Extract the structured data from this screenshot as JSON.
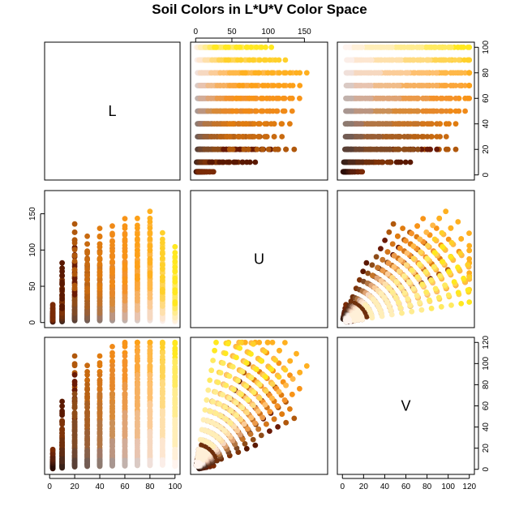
{
  "chart_data": {
    "type": "scatter",
    "subtype": "scatterplot-matrix",
    "title": "Soil Colors in L*U*V Color Space",
    "variables": [
      "L",
      "U",
      "V"
    ],
    "ranges": {
      "L": [
        0,
        100
      ],
      "U": [
        0,
        175
      ],
      "V": [
        0,
        120
      ]
    },
    "ticks": {
      "L": [
        0,
        20,
        40,
        60,
        80,
        100
      ],
      "U": [
        0,
        50,
        100,
        150
      ],
      "V": [
        0,
        20,
        40,
        60,
        80,
        100,
        120
      ]
    },
    "axes": {
      "top": {
        "variable": "U",
        "labels": [
          "0",
          "50",
          "100",
          "150"
        ]
      },
      "left": {
        "variable": "U",
        "labels": [
          "0",
          "50",
          "100",
          "150"
        ]
      },
      "right_top": {
        "variable": "L",
        "labels": [
          "0",
          "20",
          "40",
          "60",
          "80",
          "100"
        ]
      },
      "right_bottom": {
        "variable": "V",
        "labels": [
          "0",
          "20",
          "40",
          "60",
          "80",
          "100",
          "120"
        ]
      },
      "bottom": {
        "variable": "L",
        "labels": [
          "0",
          "20",
          "40",
          "60",
          "80",
          "100"
        ]
      }
    },
    "series": [
      {
        "L": 2.5,
        "hue_angles_deg": [
          10,
          80
        ],
        "chroma": [
          4,
          6,
          8,
          10,
          12,
          16,
          20
        ],
        "colors": [
          "#2a0d08",
          "#3d140a",
          "#4a1a0d",
          "#5a1f0d",
          "#6b2309",
          "#7a2a05"
        ]
      },
      {
        "L": 10,
        "hue_angles_deg": [
          20,
          75
        ],
        "chroma": [
          4,
          8,
          12,
          16,
          20,
          25,
          30,
          40,
          50,
          60,
          70
        ],
        "colors": [
          "#3a221a",
          "#4e2a1c",
          "#5f2c14",
          "#6e2f0c",
          "#7e3308",
          "#5a1800"
        ]
      },
      {
        "L": 20,
        "hue_angles_deg": [
          25,
          70
        ],
        "chroma": [
          6,
          10,
          15,
          20,
          30,
          40,
          50,
          60,
          70,
          80,
          90,
          100,
          110,
          120
        ],
        "colors": [
          "#5a4036",
          "#6e4631",
          "#7f4a26",
          "#8e4c18",
          "#6a1a06",
          "#b0580c"
        ]
      },
      {
        "L": 30,
        "hue_angles_deg": [
          30,
          70
        ],
        "chroma": [
          6,
          10,
          15,
          20,
          30,
          40,
          50,
          60,
          70,
          80,
          90,
          100,
          110
        ],
        "colors": [
          "#735d54",
          "#86604a",
          "#995f36",
          "#a85f22",
          "#b86214",
          "#c86a10"
        ]
      },
      {
        "L": 40,
        "hue_angles_deg": [
          30,
          70
        ],
        "chroma": [
          6,
          10,
          15,
          20,
          30,
          40,
          50,
          60,
          70,
          80,
          90,
          100,
          110,
          120
        ],
        "colors": [
          "#8e7a70",
          "#a07866",
          "#b27644",
          "#c4742a",
          "#d4761a",
          "#e07c10"
        ]
      },
      {
        "L": 50,
        "hue_angles_deg": [
          35,
          70
        ],
        "chroma": [
          6,
          10,
          15,
          20,
          30,
          40,
          50,
          60,
          70,
          80,
          90,
          100,
          110,
          120,
          130
        ],
        "colors": [
          "#a89690",
          "#bb9580",
          "#ca9058",
          "#d88a38",
          "#e6882a",
          "#f08a18"
        ]
      },
      {
        "L": 60,
        "hue_angles_deg": [
          35,
          70
        ],
        "chroma": [
          6,
          10,
          15,
          20,
          30,
          40,
          50,
          60,
          70,
          80,
          90,
          100,
          110,
          120,
          130,
          140
        ],
        "colors": [
          "#c2b2ac",
          "#d2ac98",
          "#dfa476",
          "#eb9a4a",
          "#f4922a",
          "#f89418"
        ]
      },
      {
        "L": 70,
        "hue_angles_deg": [
          40,
          70
        ],
        "chroma": [
          6,
          10,
          15,
          20,
          30,
          40,
          50,
          60,
          70,
          80,
          90,
          100,
          110,
          120,
          130,
          140,
          150
        ],
        "colors": [
          "#dacac4",
          "#e8c4b0",
          "#f0bc8a",
          "#f6b060",
          "#fba63a",
          "#fda018"
        ]
      },
      {
        "L": 80,
        "hue_angles_deg": [
          40,
          70
        ],
        "chroma": [
          6,
          10,
          15,
          20,
          30,
          40,
          50,
          60,
          70,
          80,
          90,
          100,
          110,
          120,
          130,
          140,
          150,
          160
        ],
        "colors": [
          "#f0e0da",
          "#f6d8c0",
          "#fbcc98",
          "#fec070",
          "#ffb848",
          "#ffb020"
        ]
      },
      {
        "L": 90,
        "hue_angles_deg": [
          45,
          75
        ],
        "chroma": [
          6,
          10,
          15,
          20,
          30,
          40,
          50,
          60,
          70,
          80,
          90,
          100,
          110,
          120,
          130,
          140
        ],
        "colors": [
          "#fbeee8",
          "#fde6d0",
          "#fee0ac",
          "#ffda80",
          "#ffd454",
          "#ffd02a"
        ]
      },
      {
        "L": 100,
        "hue_angles_deg": [
          50,
          80
        ],
        "chroma": [
          4,
          8,
          12,
          16,
          20,
          30,
          40,
          50,
          60,
          70,
          80,
          90,
          100,
          110,
          120,
          130
        ],
        "colors": [
          "#fff4ee",
          "#fff0d8",
          "#ffeeb8",
          "#ffec90",
          "#ffea60",
          "#ffe820"
        ]
      }
    ]
  }
}
